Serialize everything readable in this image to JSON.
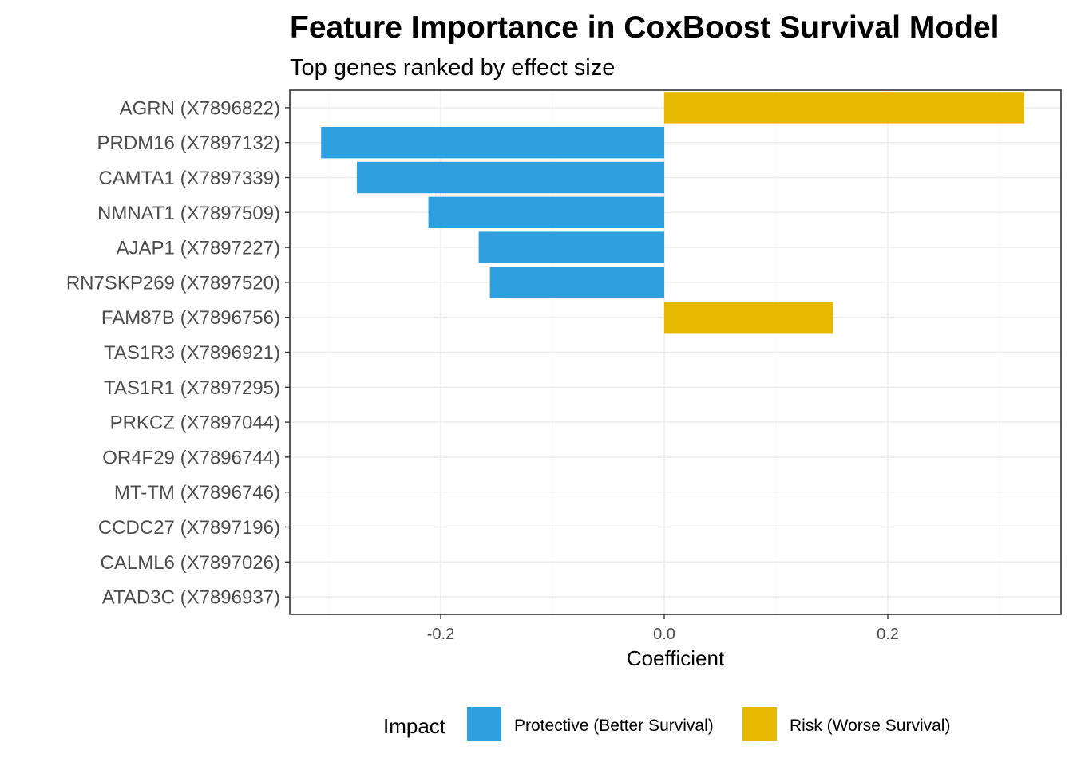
{
  "chart_data": {
    "type": "bar",
    "orientation": "horizontal",
    "title": "Feature Importance in CoxBoost Survival Model",
    "subtitle": "Top genes ranked by effect size",
    "xlabel": "Coefficient",
    "ylabel": "",
    "xlim": [
      -0.335,
      0.355
    ],
    "xticks": [
      -0.2,
      0.0,
      0.2
    ],
    "xtick_labels": [
      "-0.2",
      "0.0",
      "0.2"
    ],
    "grid": true,
    "categories": [
      "AGRN (X7896822)",
      "PRDM16 (X7897132)",
      "CAMTA1 (X7897339)",
      "NMNAT1 (X7897509)",
      "AJAP1 (X7897227)",
      "RN7SKP269 (X7897520)",
      "FAM87B (X7896756)",
      "TAS1R3 (X7896921)",
      "TAS1R1 (X7897295)",
      "PRKCZ (X7897044)",
      "OR4F29 (X7896744)",
      "MT-TM (X7896746)",
      "CCDC27 (X7897196)",
      "CALML6 (X7897026)",
      "ATAD3C (X7896937)"
    ],
    "values": [
      0.322,
      -0.307,
      -0.275,
      -0.211,
      -0.166,
      -0.156,
      0.151,
      0,
      0,
      0,
      0,
      0,
      0,
      0,
      0
    ],
    "impact": [
      "Risk",
      "Protective",
      "Protective",
      "Protective",
      "Protective",
      "Protective",
      "Risk",
      "None",
      "None",
      "None",
      "None",
      "None",
      "None",
      "None",
      "None"
    ],
    "legend": {
      "title": "Impact",
      "position": "bottom",
      "items": [
        {
          "key": "Protective",
          "label": "Protective (Better Survival)",
          "color": "#2E9FDF"
        },
        {
          "key": "Risk",
          "label": "Risk (Worse Survival)",
          "color": "#E7B800"
        }
      ]
    },
    "colors": {
      "Protective": "#2E9FDF",
      "Risk": "#E7B800",
      "None": "#999999"
    }
  }
}
